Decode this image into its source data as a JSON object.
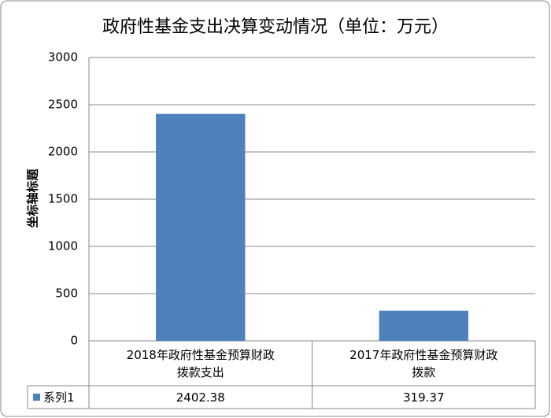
{
  "chart_data": {
    "type": "bar",
    "title": "政府性基金支出决算变动情况（单位：万元）",
    "y_label": "坐标轴标题",
    "categories": [
      "2018年政府性基金预算财政拨款支出",
      "2017年政府性基金预算财政拨款"
    ],
    "series": [
      {
        "name": "系列1",
        "color": "#4f81bd",
        "values": [
          2402.38,
          319.37
        ]
      }
    ],
    "ylim": [
      0,
      3000
    ],
    "yticks": [
      0,
      500,
      1000,
      1500,
      2000,
      2500,
      3000
    ],
    "grid": true
  }
}
